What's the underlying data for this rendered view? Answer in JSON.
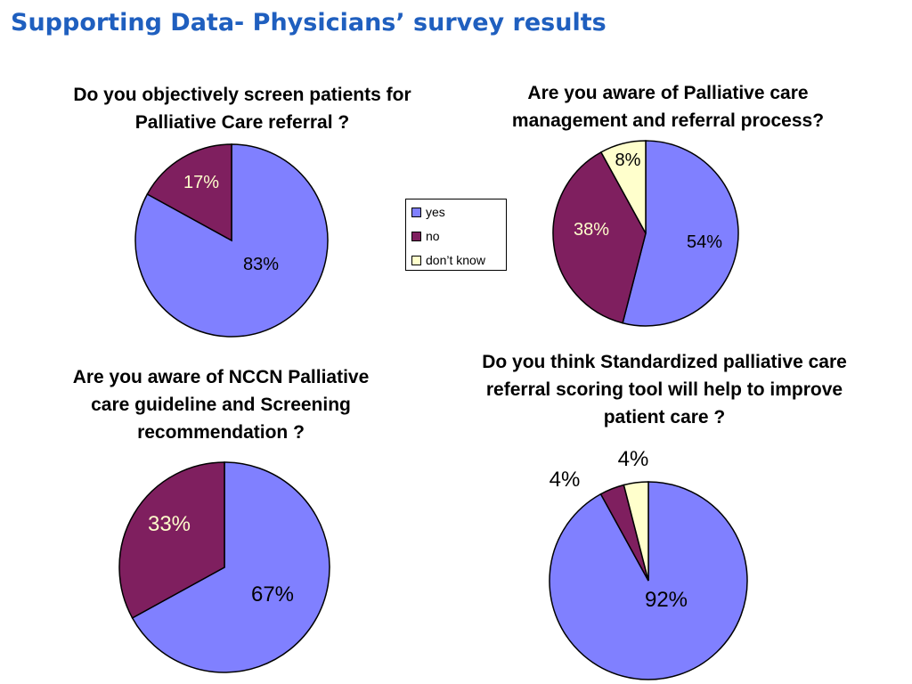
{
  "slide": {
    "title": "Supporting Data- Physicians’ survey results"
  },
  "colors": {
    "yes": "#8080ff",
    "no": "#7f1f5f",
    "dont_know": "#ffffcc",
    "title": "#1f5fbf"
  },
  "legend": [
    {
      "label": "yes",
      "color": "#8080ff"
    },
    {
      "label": "no",
      "color": "#7f1f5f"
    },
    {
      "label": "don’t know",
      "color": "#ffffcc"
    }
  ],
  "chart_data": [
    {
      "type": "pie",
      "title_lines": [
        "Do you objectively screen patients for",
        "Palliative Care referral ?"
      ],
      "categories": [
        "yes",
        "no"
      ],
      "values": [
        83,
        17
      ],
      "labels": [
        "83%",
        "17%"
      ]
    },
    {
      "type": "pie",
      "title_lines": [
        "Are you aware of Palliative care",
        "management and referral process?"
      ],
      "categories": [
        "yes",
        "no",
        "don’t know"
      ],
      "values": [
        54,
        38,
        8
      ],
      "labels": [
        "54%",
        "38%",
        "8%"
      ]
    },
    {
      "type": "pie",
      "title_lines": [
        "Are you aware of NCCN Palliative",
        "care guideline and Screening",
        "recommendation ?"
      ],
      "categories": [
        "yes",
        "no"
      ],
      "values": [
        67,
        33
      ],
      "labels": [
        "67%",
        "33%"
      ]
    },
    {
      "type": "pie",
      "title_lines": [
        "Do you think Standardized palliative care",
        "referral scoring tool will help to improve",
        "patient care ?"
      ],
      "categories": [
        "yes",
        "no",
        "don’t know"
      ],
      "values": [
        92,
        4,
        4
      ],
      "labels": [
        "92%",
        "4%",
        "4%"
      ]
    }
  ]
}
